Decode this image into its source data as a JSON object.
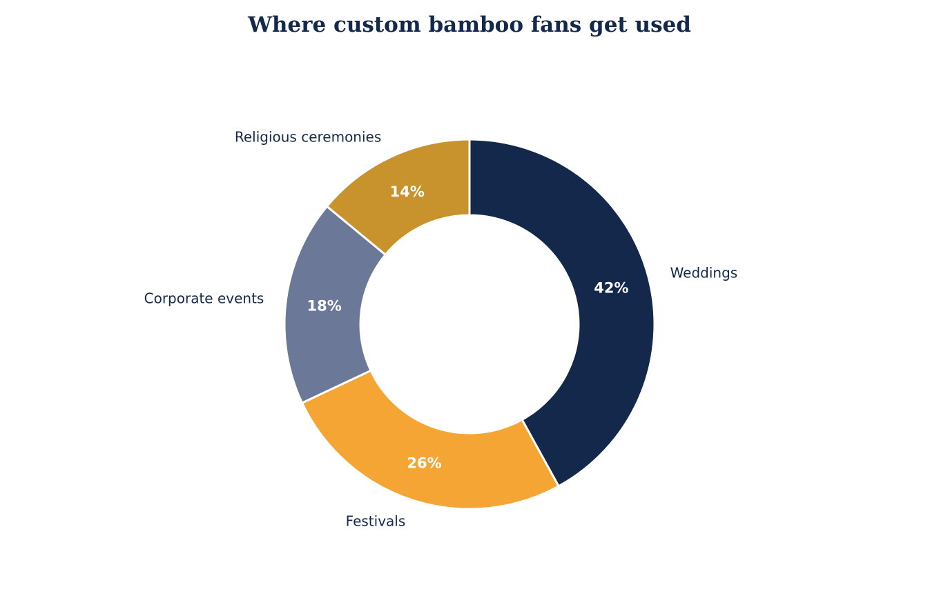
{
  "chart_data": {
    "type": "pie",
    "variant": "donut",
    "title": "Where custom bamboo fans get used",
    "categories": [
      "Weddings",
      "Festivals",
      "Corporate events",
      "Religious ceremonies"
    ],
    "values": [
      42,
      26,
      18,
      14
    ],
    "value_labels": [
      "42%",
      "26%",
      "18%",
      "14%"
    ],
    "colors": [
      "#14284b",
      "#f4a533",
      "#6b7897",
      "#c8922c"
    ],
    "start_angle": "12 o'clock",
    "direction": "clockwise",
    "legend": "none",
    "labels": "outside slices"
  }
}
